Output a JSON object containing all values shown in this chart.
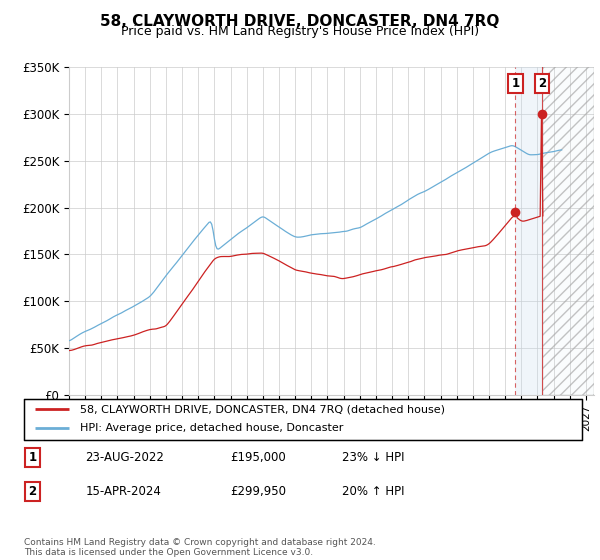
{
  "title": "58, CLAYWORTH DRIVE, DONCASTER, DN4 7RQ",
  "subtitle": "Price paid vs. HM Land Registry's House Price Index (HPI)",
  "ylabel_ticks": [
    "£0",
    "£50K",
    "£100K",
    "£150K",
    "£200K",
    "£250K",
    "£300K",
    "£350K"
  ],
  "ylim": [
    0,
    350000
  ],
  "xlim_start": 1995.0,
  "xlim_end": 2027.5,
  "hpi_color": "#6baed6",
  "property_color": "#cc2222",
  "marker1_date": 2022.64,
  "marker1_label": "1",
  "marker1_price": 195000,
  "marker1_date_str": "23-AUG-2022",
  "marker1_price_str": "£195,000",
  "marker1_hpi_str": "23% ↓ HPI",
  "marker2_date": 2024.29,
  "marker2_label": "2",
  "marker2_price": 299950,
  "marker2_date_str": "15-APR-2024",
  "marker2_price_str": "£299,950",
  "marker2_hpi_str": "20% ↑ HPI",
  "legend_line1": "58, CLAYWORTH DRIVE, DONCASTER, DN4 7RQ (detached house)",
  "legend_line2": "HPI: Average price, detached house, Doncaster",
  "footer": "Contains HM Land Registry data © Crown copyright and database right 2024.\nThis data is licensed under the Open Government Licence v3.0.",
  "future_start": 2024.33,
  "background_color": "#ffffff",
  "grid_color": "#cccccc",
  "shade_start": 2022.64,
  "shade_end": 2024.33
}
